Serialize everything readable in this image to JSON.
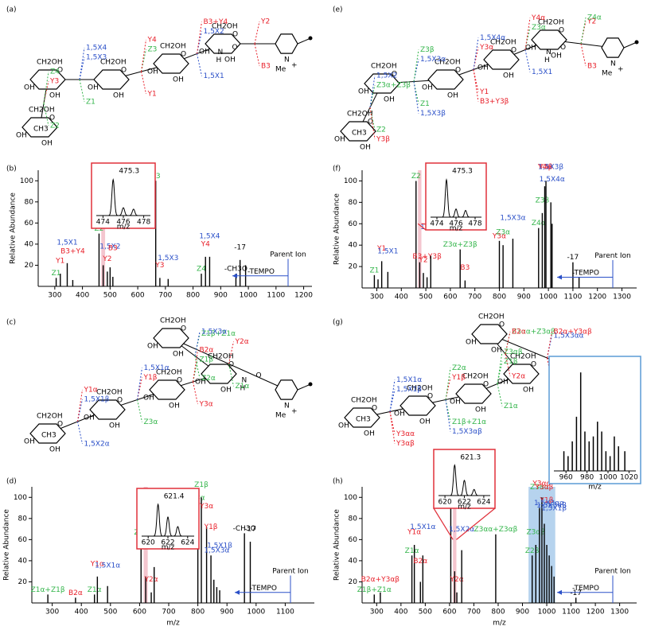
{
  "atoms": {
    "n": "N",
    "h": "H",
    "o": "O",
    "me": "Me",
    "plus": "+",
    "oh": "OH",
    "ch2oh": "CH2OH",
    "ch3": "CH3"
  },
  "structures": [
    {
      "label": "(a)",
      "fragments": [
        "Y3",
        "1,5X3",
        "Z3",
        "1,5X2",
        "Y2",
        "Z2",
        "Z1",
        "Y1",
        "1,5X1",
        "B3",
        "Z4",
        "1,5X4",
        "Y4",
        "B3+Y4"
      ],
      "colors": [
        "#e8202a",
        "#2b50c8",
        "#33b54a",
        "#2b50c8",
        "#e8202a",
        "#33b54a",
        "#33b54a",
        "#e8202a",
        "#2b50c8",
        "#e8202a",
        "#33b54a",
        "#2b50c8",
        "#e8202a",
        "#e8202a"
      ]
    },
    {
      "label": "(e)",
      "fragments": [
        "Z3α+Z3β",
        "1,5X3α",
        "Y3α",
        "Z3α",
        "Y2",
        "Z2",
        "Z1",
        "Y1",
        "1,5X1",
        "B3",
        "1,5X2",
        "Z3β",
        "1,5X4α",
        "Y4α",
        "Z4α",
        "Y3β",
        "1,5X3β",
        "B3+Y3β"
      ],
      "colors": [
        "#33b54a",
        "#2b50c8",
        "#e8202a",
        "#33b54a",
        "#e8202a",
        "#33b54a",
        "#33b54a",
        "#e8202a",
        "#2b50c8",
        "#e8202a",
        "#2b50c8",
        "#33b54a",
        "#2b50c8",
        "#e8202a",
        "#33b54a",
        "#e8202a",
        "#2b50c8",
        "#e8202a"
      ]
    },
    {
      "label": "(c)",
      "fragments": [
        "1,5X1β",
        "Y1β",
        "Z1β",
        "Z1β+Z1α",
        "Y2α",
        "1,5X2α",
        "Z3α",
        "Y3α",
        "Z2α",
        "Z1α",
        "Y1α",
        "1,5X1α",
        "B2α",
        "1,5X3α"
      ],
      "colors": [
        "#2b50c8",
        "#e8202a",
        "#33b54a",
        "#33b54a",
        "#e8202a",
        "#2b50c8",
        "#33b54a",
        "#e8202a",
        "#33b54a",
        "#33b54a",
        "#e8202a",
        "#2b50c8",
        "#e8202a",
        "#2b50c8"
      ]
    },
    {
      "label": "(g)",
      "fragments": [
        "1,5X1β",
        "Y1β",
        "Z1β",
        "Z3αα+Z3αβ",
        "1,5X3αα",
        "Y3αα",
        "Z1β+Z1α",
        "Z1α",
        "Y2α",
        "Y1α",
        "1,5X1α",
        "Z2α",
        "Z3αβ",
        "B2α",
        "B2α+Y3αβ",
        "Y3αβ",
        "1,5X3αβ"
      ],
      "colors": [
        "#2b50c8",
        "#e8202a",
        "#33b54a",
        "#33b54a",
        "#2b50c8",
        "#e8202a",
        "#33b54a",
        "#33b54a",
        "#e8202a",
        "#e8202a",
        "#2b50c8",
        "#33b54a",
        "#33b54a",
        "#e8202a",
        "#e8202a",
        "#e8202a",
        "#2b50c8"
      ]
    }
  ],
  "chart_data": [
    {
      "type": "bar",
      "label": "(b)",
      "ylabel": "Relative Abundance",
      "x": [
        305,
        320,
        345,
        365,
        460,
        475,
        490,
        500,
        510,
        665,
        680,
        710,
        830,
        845,
        860,
        955,
        970,
        990
      ],
      "values": [
        8,
        12,
        22,
        6,
        50,
        20,
        14,
        18,
        9,
        100,
        8,
        7,
        12,
        28,
        28,
        12,
        25,
        20
      ],
      "labels": [
        "Z1",
        "Y1",
        "1,5X1",
        "B3+Y4",
        "Z2",
        null,
        "Y2",
        "1,5X2",
        "B3",
        "Z3",
        "Y3",
        "1,5X3",
        "Z4",
        "Y4",
        "1,5X4",
        "-CH3O",
        "-17",
        null
      ],
      "label_colors": [
        "#33b54a",
        "#e8202a",
        "#2b50c8",
        "#e8202a",
        "#33b54a",
        "#000000",
        "#e8202a",
        "#2b50c8",
        "#e8202a",
        "#33b54a",
        "#e8202a",
        "#2b50c8",
        "#33b54a",
        "#e8202a",
        "#2b50c8",
        "#000000",
        "#000000",
        "#000000"
      ],
      "color": "#000000",
      "xlim": [
        240,
        1230
      ],
      "xticks": [
        300,
        400,
        500,
        600,
        700,
        800,
        900,
        1000,
        1100,
        1200
      ],
      "ylim": [
        0,
        110
      ],
      "yticks": [
        20,
        40,
        60,
        80,
        100
      ],
      "highlights": [
        {
          "range": [
            468,
            482
          ],
          "color": "#f4c6cf"
        }
      ],
      "annotations": [
        "Parent Ion",
        "-TEMPO"
      ],
      "insets": [
        {
          "label": "475.3",
          "style": "profile",
          "x": [
            475,
            476,
            477
          ],
          "values": [
            100,
            22,
            18
          ],
          "xlim": [
            473.5,
            478.5
          ],
          "ylim": [
            0,
            115
          ],
          "xticks": [
            474,
            476,
            478
          ],
          "xlabel": "m/z",
          "border": "#e0303a"
        }
      ]
    },
    {
      "type": "bar",
      "label": "(d)",
      "ylabel": "Relative Abundance",
      "xlabel": "m/z",
      "x": [
        285,
        380,
        445,
        455,
        490,
        605,
        621,
        640,
        650,
        800,
        812,
        830,
        845,
        855,
        865,
        875,
        960,
        980
      ],
      "values": [
        8,
        5,
        8,
        25,
        16,
        62,
        25,
        10,
        34,
        95,
        100,
        72,
        45,
        22,
        15,
        12,
        66,
        58
      ],
      "labels": [
        "Z1α+Z1β",
        "B2α",
        "Z1α",
        "Y1α",
        "1,5X1α",
        "Z2α",
        null,
        "Y2α",
        "1,5X2α",
        "Z3α",
        "Z1β",
        "Y3α",
        "Y1β",
        null,
        "1,5X3α",
        "1,5X1β",
        "-CH3O",
        "-17"
      ],
      "label_colors": [
        "#33b54a",
        "#e8202a",
        "#33b54a",
        "#e8202a",
        "#2b50c8",
        "#33b54a",
        "#000000",
        "#e8202a",
        "#2b50c8",
        "#33b54a",
        "#33b54a",
        "#e8202a",
        "#e8202a",
        "#000000",
        "#2b50c8",
        "#2b50c8",
        "#000000",
        "#000000"
      ],
      "color": "#000000",
      "xlim": [
        230,
        1200
      ],
      "xticks": [
        300,
        400,
        500,
        600,
        700,
        800,
        900,
        1000,
        1100
      ],
      "ylim": [
        0,
        110
      ],
      "yticks": [
        20,
        40,
        60,
        80,
        100
      ],
      "highlights": [
        {
          "range": [
            614,
            628
          ],
          "color": "#f4c6cf"
        }
      ],
      "annotations": [
        "Parent Ion",
        "-TEMPO"
      ],
      "insets": [
        {
          "label": "621.4",
          "style": "profile",
          "x": [
            621,
            622,
            623
          ],
          "values": [
            100,
            60,
            30
          ],
          "xlim": [
            619.5,
            624.5
          ],
          "ylim": [
            0,
            115
          ],
          "xticks": [
            620,
            622,
            624
          ],
          "xlabel": "m/z",
          "border": "#e0303a"
        }
      ]
    },
    {
      "type": "bar",
      "label": "(f)",
      "ylabel": "Relative Abundance",
      "x": [
        290,
        305,
        320,
        345,
        460,
        475,
        490,
        505,
        520,
        640,
        660,
        800,
        815,
        855,
        960,
        975,
        985,
        990,
        1010,
        1015,
        1100,
        1125
      ],
      "values": [
        12,
        8,
        25,
        15,
        100,
        24,
        14,
        10,
        30,
        36,
        7,
        44,
        40,
        46,
        56,
        70,
        95,
        100,
        80,
        60,
        24,
        10
      ],
      "labels": [
        "Z1",
        null,
        "Y1",
        "1,5X1",
        "Z2",
        null,
        "Y2",
        "B3+Y3β",
        "1,5X2",
        "Z3α+Z3β",
        "B3",
        "Y3α",
        "Z3α",
        "1,5X3α",
        "Z4α",
        "Z3β",
        "Y4α",
        "Y3β",
        "1,5X3β",
        "1,5X4α",
        "-17",
        null
      ],
      "label_colors": [
        "#33b54a",
        "#000000",
        "#e8202a",
        "#2b50c8",
        "#33b54a",
        "#000000",
        "#e8202a",
        "#e8202a",
        "#2b50c8",
        "#33b54a",
        "#e8202a",
        "#e8202a",
        "#33b54a",
        "#2b50c8",
        "#33b54a",
        "#33b54a",
        "#e8202a",
        "#e8202a",
        "#2b50c8",
        "#2b50c8",
        "#000000",
        "#000000"
      ],
      "color": "#000000",
      "xlim": [
        240,
        1360
      ],
      "xticks": [
        300,
        400,
        500,
        600,
        700,
        800,
        900,
        1000,
        1100,
        1200,
        1300
      ],
      "ylim": [
        0,
        110
      ],
      "yticks": [
        20,
        40,
        60,
        80,
        100
      ],
      "highlights": [
        {
          "range": [
            468,
            482
          ],
          "color": "#f4c6cf"
        }
      ],
      "annotations": [
        "Parent Ion",
        "-TEMPO"
      ],
      "insets": [
        {
          "label": "475.3",
          "style": "profile",
          "x": [
            475,
            476,
            477
          ],
          "values": [
            100,
            22,
            18
          ],
          "xlim": [
            473.5,
            478.5
          ],
          "ylim": [
            0,
            115
          ],
          "xticks": [
            474,
            476,
            478
          ],
          "xlabel": "m/z",
          "border": "#e0303a"
        }
      ]
    },
    {
      "type": "bar",
      "label": "(h)",
      "ylabel": "Relative Abundance",
      "xlabel": "m/z",
      "x": [
        290,
        315,
        445,
        455,
        480,
        490,
        605,
        621,
        630,
        650,
        790,
        940,
        955,
        970,
        980,
        990,
        1000,
        1010,
        1020,
        1030,
        1120
      ],
      "values": [
        8,
        10,
        45,
        55,
        20,
        45,
        100,
        30,
        10,
        50,
        65,
        45,
        55,
        90,
        100,
        75,
        55,
        45,
        35,
        25,
        5
      ],
      "labels": [
        "Z1β+Z1α",
        "B2α+Y3αβ",
        "Z1α",
        "Y1α",
        "B2α",
        "1,5X1α",
        "Z2α",
        null,
        "Y2α",
        "1,5X2α",
        "Z3αα+Z3αβ",
        "Z2β",
        "Z3αβ",
        "Z3αα",
        "Y3αα",
        "Y3αβ",
        "Y1β",
        "1,5X3αα",
        "1,5X3αβ",
        "1,5X1β",
        "-17"
      ],
      "label_colors": [
        "#33b54a",
        "#e8202a",
        "#33b54a",
        "#e8202a",
        "#e8202a",
        "#2b50c8",
        "#33b54a",
        "#000000",
        "#e8202a",
        "#2b50c8",
        "#33b54a",
        "#33b54a",
        "#33b54a",
        "#33b54a",
        "#e8202a",
        "#e8202a",
        "#e8202a",
        "#2b50c8",
        "#2b50c8",
        "#2b50c8",
        "#000000"
      ],
      "color": "#000000",
      "xlim": [
        240,
        1370
      ],
      "xticks": [
        300,
        400,
        500,
        600,
        700,
        800,
        900,
        1000,
        1100,
        1200,
        1300
      ],
      "ylim": [
        0,
        110
      ],
      "yticks": [
        20,
        40,
        60,
        80,
        100
      ],
      "highlights": [
        {
          "range": [
            614,
            628
          ],
          "color": "#f4c6cf"
        },
        {
          "range": [
            925,
            1035
          ],
          "color": "#b6d3ee"
        }
      ],
      "annotations": [
        "Parent Ion",
        "-TEMPO"
      ],
      "insets": [
        {
          "label": "621.3",
          "style": "profile",
          "x": [
            621,
            622,
            623
          ],
          "values": [
            100,
            50,
            20
          ],
          "xlim": [
            619.5,
            624.5
          ],
          "ylim": [
            0,
            115
          ],
          "xticks": [
            620,
            622,
            624
          ],
          "xlabel": "m/z",
          "border": "#e0303a"
        },
        {
          "style": "stick",
          "x": [
            958,
            962,
            966,
            970,
            974,
            978,
            982,
            986,
            990,
            994,
            998,
            1002,
            1006,
            1010,
            1016
          ],
          "values": [
            20,
            15,
            30,
            55,
            100,
            40,
            30,
            35,
            50,
            40,
            20,
            15,
            35,
            25,
            20
          ],
          "xlim": [
            950,
            1025
          ],
          "ylim": [
            0,
            105
          ],
          "xticks": [
            960,
            980,
            1000,
            1020
          ],
          "xlabel": "m/z",
          "border": "#5b9bd5"
        }
      ]
    }
  ]
}
